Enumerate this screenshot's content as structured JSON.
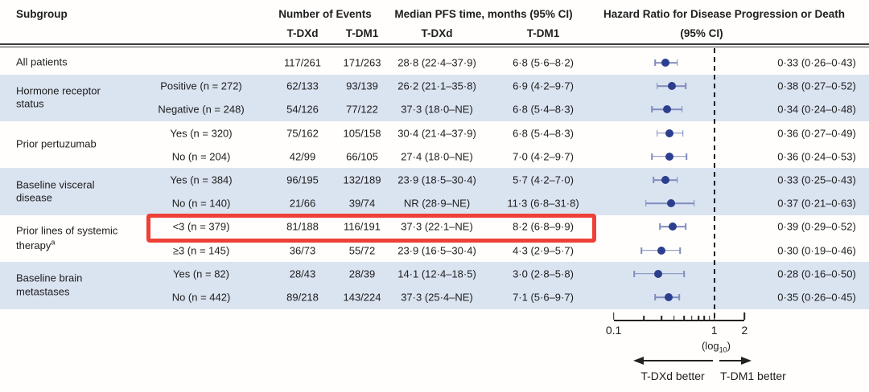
{
  "colors": {
    "row_shade": "#dae3f0",
    "dot": "#2c3e8e",
    "whisker": "#7f8cbe",
    "highlight_box": "#ee4036",
    "reference_line": "#1c1c1c"
  },
  "header": {
    "subgroup": "Subgroup",
    "events_group": "Number of Events",
    "events_tdxd": "T-DXd",
    "events_tdm1": "T-DM1",
    "pfs_group": "Median PFS time, months (95% CI)",
    "pfs_tdxd": "T-DXd",
    "pfs_tdm1": "T-DM1",
    "hr_group_line1": "Hazard Ratio for Disease Progression or Death",
    "hr_group_line2": "(95% CI)"
  },
  "table": {
    "groups": [
      {
        "label": "All patients",
        "rows": [
          {
            "value": null,
            "ev_tdxd": "117/261",
            "ev_tdm1": "171/263",
            "pfs_tdxd": "28·8 (22·4–37·9)",
            "pfs_tdm1": "6·8 (5·6–8·2)",
            "hr_ci": "0·33 (0·26–0·43)",
            "highlight": false
          }
        ]
      },
      {
        "label": "Hormone receptor status",
        "rows": [
          {
            "value": "Positive (n = 272)",
            "ev_tdxd": "62/133",
            "ev_tdm1": "93/139",
            "pfs_tdxd": "26·2 (21·1–35·8)",
            "pfs_tdm1": "6·9 (4·2–9·7)",
            "hr_ci": "0·38 (0·27–0·52)",
            "highlight": false
          },
          {
            "value": "Negative (n = 248)",
            "ev_tdxd": "54/126",
            "ev_tdm1": "77/122",
            "pfs_tdxd": "37·3 (18·0–NE)",
            "pfs_tdm1": "6·8 (5·4–8·3)",
            "hr_ci": "0·34 (0·24–0·48)",
            "highlight": false
          }
        ]
      },
      {
        "label": "Prior pertuzumab",
        "rows": [
          {
            "value": "Yes (n = 320)",
            "ev_tdxd": "75/162",
            "ev_tdm1": "105/158",
            "pfs_tdxd": "30·4 (21·4–37·9)",
            "pfs_tdm1": "6·8 (5·4–8·3)",
            "hr_ci": "0·36 (0·27–0·49)",
            "highlight": false
          },
          {
            "value": "No (n = 204)",
            "ev_tdxd": "42/99",
            "ev_tdm1": "66/105",
            "pfs_tdxd": "27·4 (18·0–NE)",
            "pfs_tdm1": "7·0 (4·2–9·7)",
            "hr_ci": "0·36 (0·24–0·53)",
            "highlight": false
          }
        ]
      },
      {
        "label": "Baseline visceral disease",
        "rows": [
          {
            "value": "Yes (n = 384)",
            "ev_tdxd": "96/195",
            "ev_tdm1": "132/189",
            "pfs_tdxd": "23·9 (18·5–30·4)",
            "pfs_tdm1": "5·7 (4·2–7·0)",
            "hr_ci": "0·33 (0·25–0·43)",
            "highlight": false
          },
          {
            "value": "No (n = 140)",
            "ev_tdxd": "21/66",
            "ev_tdm1": "39/74",
            "pfs_tdxd": "NR (28·9–NE)",
            "pfs_tdm1": "11·3 (6·8–31·8)",
            "hr_ci": "0·37 (0·21–0·63)",
            "highlight": false
          }
        ]
      },
      {
        "label": "Prior lines of systemic therapy",
        "sup": "a",
        "rows": [
          {
            "value": "<3 (n = 379)",
            "ev_tdxd": "81/188",
            "ev_tdm1": "116/191",
            "pfs_tdxd": "37·3 (22·1–NE)",
            "pfs_tdm1": "8·2 (6·8–9·9)",
            "hr_ci": "0·39 (0·29–0·52)",
            "highlight": true
          },
          {
            "value": "≥3 (n = 145)",
            "ev_tdxd": "36/73",
            "ev_tdm1": "55/72",
            "pfs_tdxd": "23·9 (16·5–30·4)",
            "pfs_tdm1": "4·3 (2·9–5·7)",
            "hr_ci": "0·30 (0·19–0·46)",
            "highlight": false
          }
        ]
      },
      {
        "label": "Baseline brain metastases",
        "rows": [
          {
            "value": "Yes (n = 82)",
            "ev_tdxd": "28/43",
            "ev_tdm1": "28/39",
            "pfs_tdxd": "14·1 (12·4–18·5)",
            "pfs_tdm1": "3·0 (2·8–5·8)",
            "hr_ci": "0·28 (0·16–0·50)",
            "highlight": false
          },
          {
            "value": "No (n = 442)",
            "ev_tdxd": "89/218",
            "ev_tdm1": "143/224",
            "pfs_tdxd": "37·3 (25·4–NE)",
            "pfs_tdm1": "7·1 (5·6–9·7)",
            "hr_ci": "0·35 (0·26–0·45)",
            "highlight": false
          }
        ]
      }
    ]
  },
  "axis": {
    "tick_labels": [
      "0.1",
      "1",
      "2"
    ],
    "log_note": {
      "open": "(log",
      "sub": "10",
      "close": ")"
    },
    "left_arrow_label": "T-DXd better",
    "right_arrow_label": "T-DM1 better"
  },
  "chart_data": {
    "type": "scatter",
    "variant": "forest-plot",
    "title": "Hazard Ratio for Disease Progression or Death (95% CI)",
    "x_scale": "log10",
    "x_ticks": [
      0.1,
      1,
      2
    ],
    "x_minor_ticks": [
      0.2,
      0.3,
      0.4,
      0.5,
      0.6,
      0.7,
      0.8,
      0.9
    ],
    "reference_line_x": 1,
    "points": [
      {
        "subgroup": "All patients",
        "hr": 0.33,
        "ci": [
          0.26,
          0.43
        ]
      },
      {
        "subgroup": "Hormone receptor status: Positive (n = 272)",
        "hr": 0.38,
        "ci": [
          0.27,
          0.52
        ]
      },
      {
        "subgroup": "Hormone receptor status: Negative (n = 248)",
        "hr": 0.34,
        "ci": [
          0.24,
          0.48
        ]
      },
      {
        "subgroup": "Prior pertuzumab: Yes (n = 320)",
        "hr": 0.36,
        "ci": [
          0.27,
          0.49
        ]
      },
      {
        "subgroup": "Prior pertuzumab: No (n = 204)",
        "hr": 0.36,
        "ci": [
          0.24,
          0.53
        ]
      },
      {
        "subgroup": "Baseline visceral disease: Yes (n = 384)",
        "hr": 0.33,
        "ci": [
          0.25,
          0.43
        ]
      },
      {
        "subgroup": "Baseline visceral disease: No (n = 140)",
        "hr": 0.37,
        "ci": [
          0.21,
          0.63
        ]
      },
      {
        "subgroup": "Prior lines of systemic therapy: <3 (n = 379)",
        "hr": 0.39,
        "ci": [
          0.29,
          0.52
        ]
      },
      {
        "subgroup": "Prior lines of systemic therapy: ≥3 (n = 145)",
        "hr": 0.3,
        "ci": [
          0.19,
          0.46
        ]
      },
      {
        "subgroup": "Baseline brain metastases: Yes (n = 82)",
        "hr": 0.28,
        "ci": [
          0.16,
          0.5
        ]
      },
      {
        "subgroup": "Baseline brain metastases: No (n = 442)",
        "hr": 0.35,
        "ci": [
          0.26,
          0.45
        ]
      }
    ]
  }
}
